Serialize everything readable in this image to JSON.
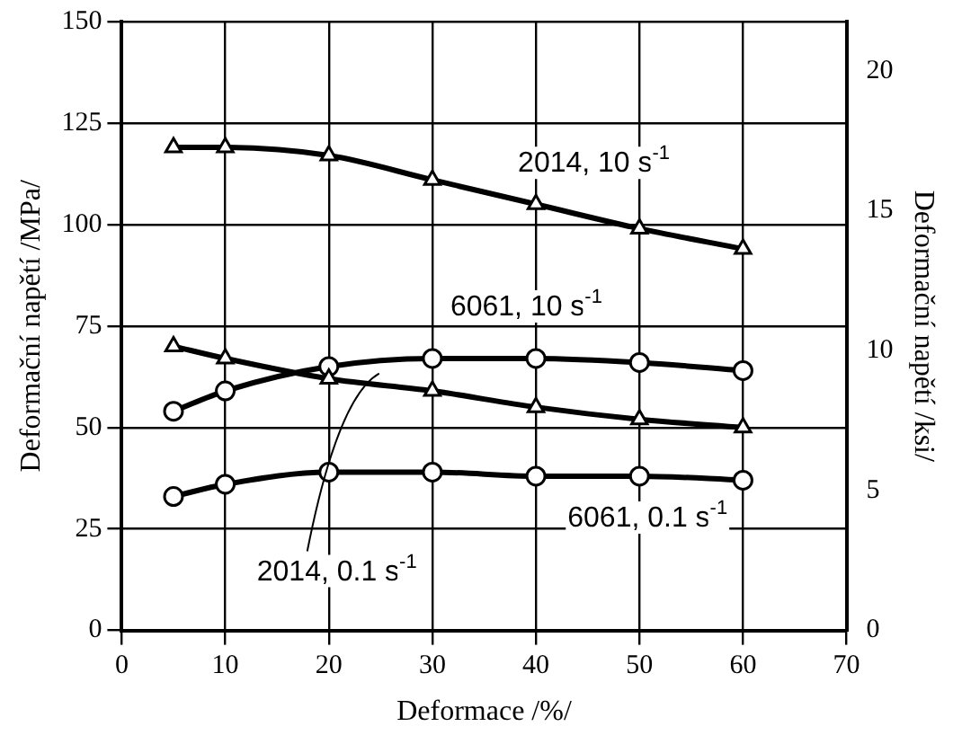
{
  "chart_data": {
    "type": "line",
    "xlabel": "Deformace /%/",
    "ylabel": "Deformační napětí /MPa/",
    "y2label": "Deformační napětí /ksi/",
    "x": [
      5,
      10,
      20,
      30,
      40,
      50,
      60
    ],
    "series": [
      {
        "name": "2014, 10 s$^{-1}$",
        "color": "#000000",
        "marker": "triangle",
        "values": [
          119,
          119,
          117,
          111,
          105,
          99,
          94
        ]
      },
      {
        "name": "6061, 10 s$^{-1}$",
        "color": "#000000",
        "marker": "circle",
        "values": [
          54,
          59,
          65,
          67,
          67,
          66,
          64
        ]
      },
      {
        "name": "2014, 0.1 s$^{-1}$",
        "color": "#000000",
        "marker": "triangle",
        "values": [
          70,
          67,
          62,
          59,
          55,
          52,
          50
        ]
      },
      {
        "name": "6061, 0.1 s$^{-1}$",
        "color": "#000000",
        "marker": "circle",
        "values": [
          33,
          36,
          39,
          39,
          38,
          38,
          37
        ]
      }
    ],
    "xlim": [
      0,
      70
    ],
    "xticks": [
      0,
      10,
      20,
      30,
      40,
      50,
      60,
      70
    ],
    "ylim": [
      0,
      150
    ],
    "yticks": [
      0,
      25,
      50,
      75,
      100,
      125,
      150
    ],
    "y2lim": [
      0,
      21.76
    ],
    "y2ticks": [
      0,
      5,
      10,
      15,
      20
    ],
    "grid": true,
    "legend": false
  }
}
